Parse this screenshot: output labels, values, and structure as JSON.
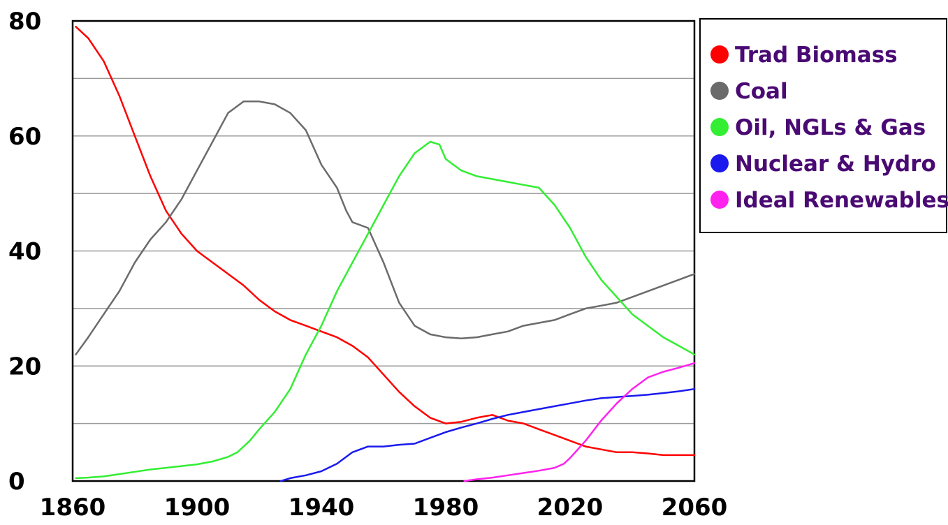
{
  "chart_data": {
    "type": "line",
    "title": "",
    "xlabel": "",
    "ylabel": "",
    "xlim": [
      1860,
      2060
    ],
    "ylim": [
      0,
      80
    ],
    "x_ticks": [
      "1860",
      "1900",
      "1940",
      "1980",
      "2020",
      "2060"
    ],
    "y_ticks": [
      "0",
      "20",
      "40",
      "60",
      "80"
    ],
    "grid": "horizontal lines every 10",
    "legend_position": "top-right, outside plot",
    "series": [
      {
        "name": "Trad Biomass",
        "color": "#ff0000",
        "points": [
          [
            1861,
            79
          ],
          [
            1865,
            77
          ],
          [
            1870,
            73
          ],
          [
            1875,
            67
          ],
          [
            1880,
            60
          ],
          [
            1885,
            53
          ],
          [
            1890,
            47
          ],
          [
            1895,
            43
          ],
          [
            1900,
            40
          ],
          [
            1905,
            38
          ],
          [
            1910,
            36
          ],
          [
            1915,
            34
          ],
          [
            1920,
            31.5
          ],
          [
            1925,
            29.5
          ],
          [
            1930,
            28
          ],
          [
            1935,
            27
          ],
          [
            1940,
            26
          ],
          [
            1945,
            25
          ],
          [
            1950,
            23.5
          ],
          [
            1955,
            21.5
          ],
          [
            1960,
            18.5
          ],
          [
            1965,
            15.5
          ],
          [
            1970,
            13
          ],
          [
            1975,
            11
          ],
          [
            1980,
            10
          ],
          [
            1985,
            10.3
          ],
          [
            1990,
            11
          ],
          [
            1995,
            11.5
          ],
          [
            2000,
            10.5
          ],
          [
            2005,
            10
          ],
          [
            2010,
            9
          ],
          [
            2015,
            8
          ],
          [
            2020,
            7
          ],
          [
            2025,
            6
          ],
          [
            2030,
            5.5
          ],
          [
            2035,
            5
          ],
          [
            2040,
            5
          ],
          [
            2045,
            4.8
          ],
          [
            2050,
            4.5
          ],
          [
            2055,
            4.5
          ],
          [
            2060,
            4.5
          ]
        ]
      },
      {
        "name": "Coal",
        "color": "#6b6b6b",
        "points": [
          [
            1861,
            22
          ],
          [
            1865,
            25
          ],
          [
            1870,
            29
          ],
          [
            1875,
            33
          ],
          [
            1880,
            38
          ],
          [
            1885,
            42
          ],
          [
            1890,
            45
          ],
          [
            1895,
            49
          ],
          [
            1900,
            54
          ],
          [
            1905,
            59
          ],
          [
            1910,
            64
          ],
          [
            1915,
            66
          ],
          [
            1920,
            66
          ],
          [
            1925,
            65.5
          ],
          [
            1930,
            64
          ],
          [
            1935,
            61
          ],
          [
            1940,
            55
          ],
          [
            1945,
            51
          ],
          [
            1948,
            47
          ],
          [
            1950,
            45
          ],
          [
            1955,
            44
          ],
          [
            1960,
            38
          ],
          [
            1965,
            31
          ],
          [
            1970,
            27
          ],
          [
            1975,
            25.5
          ],
          [
            1980,
            25
          ],
          [
            1985,
            24.8
          ],
          [
            1990,
            25
          ],
          [
            1995,
            25.5
          ],
          [
            2000,
            26
          ],
          [
            2005,
            27
          ],
          [
            2010,
            27.5
          ],
          [
            2015,
            28
          ],
          [
            2020,
            29
          ],
          [
            2025,
            30
          ],
          [
            2030,
            30.5
          ],
          [
            2035,
            31
          ],
          [
            2040,
            32
          ],
          [
            2045,
            33
          ],
          [
            2050,
            34
          ],
          [
            2055,
            35
          ],
          [
            2060,
            36
          ]
        ]
      },
      {
        "name": "Oil, NGLs & Gas",
        "color": "#33ee33",
        "points": [
          [
            1861,
            0.5
          ],
          [
            1865,
            0.6
          ],
          [
            1870,
            0.8
          ],
          [
            1875,
            1.2
          ],
          [
            1880,
            1.6
          ],
          [
            1885,
            2
          ],
          [
            1890,
            2.3
          ],
          [
            1895,
            2.6
          ],
          [
            1900,
            2.9
          ],
          [
            1905,
            3.4
          ],
          [
            1910,
            4.2
          ],
          [
            1913,
            5
          ],
          [
            1917,
            7
          ],
          [
            1920,
            9
          ],
          [
            1925,
            12
          ],
          [
            1930,
            16
          ],
          [
            1935,
            22
          ],
          [
            1940,
            27
          ],
          [
            1945,
            33
          ],
          [
            1950,
            38
          ],
          [
            1955,
            43
          ],
          [
            1960,
            48
          ],
          [
            1965,
            53
          ],
          [
            1970,
            57
          ],
          [
            1975,
            59
          ],
          [
            1978,
            58.5
          ],
          [
            1980,
            56
          ],
          [
            1985,
            54
          ],
          [
            1990,
            53
          ],
          [
            1995,
            52.5
          ],
          [
            2000,
            52
          ],
          [
            2005,
            51.5
          ],
          [
            2010,
            51
          ],
          [
            2015,
            48
          ],
          [
            2020,
            44
          ],
          [
            2025,
            39
          ],
          [
            2030,
            35
          ],
          [
            2035,
            32
          ],
          [
            2040,
            29
          ],
          [
            2045,
            27
          ],
          [
            2050,
            25
          ],
          [
            2055,
            23.5
          ],
          [
            2060,
            22
          ]
        ]
      },
      {
        "name": "Nuclear & Hydro",
        "color": "#1a1aee",
        "points": [
          [
            1927,
            0
          ],
          [
            1930,
            0.5
          ],
          [
            1935,
            1
          ],
          [
            1940,
            1.7
          ],
          [
            1945,
            3
          ],
          [
            1950,
            5
          ],
          [
            1955,
            6
          ],
          [
            1960,
            6
          ],
          [
            1965,
            6.3
          ],
          [
            1970,
            6.5
          ],
          [
            1975,
            7.5
          ],
          [
            1980,
            8.5
          ],
          [
            1985,
            9.3
          ],
          [
            1990,
            10
          ],
          [
            1995,
            10.8
          ],
          [
            2000,
            11.5
          ],
          [
            2005,
            12
          ],
          [
            2010,
            12.5
          ],
          [
            2015,
            13
          ],
          [
            2020,
            13.5
          ],
          [
            2025,
            14
          ],
          [
            2030,
            14.4
          ],
          [
            2035,
            14.6
          ],
          [
            2040,
            14.8
          ],
          [
            2045,
            15
          ],
          [
            2050,
            15.3
          ],
          [
            2055,
            15.6
          ],
          [
            2060,
            16
          ]
        ]
      },
      {
        "name": "Ideal Renewables",
        "color": "#ff22ee",
        "points": [
          [
            1986,
            0
          ],
          [
            1990,
            0.3
          ],
          [
            1995,
            0.6
          ],
          [
            2000,
            1
          ],
          [
            2005,
            1.4
          ],
          [
            2010,
            1.8
          ],
          [
            2015,
            2.3
          ],
          [
            2018,
            3
          ],
          [
            2020,
            4
          ],
          [
            2025,
            7
          ],
          [
            2030,
            10.5
          ],
          [
            2035,
            13.5
          ],
          [
            2040,
            16
          ],
          [
            2045,
            18
          ],
          [
            2050,
            19
          ],
          [
            2055,
            19.7
          ],
          [
            2060,
            20.5
          ]
        ]
      }
    ]
  }
}
